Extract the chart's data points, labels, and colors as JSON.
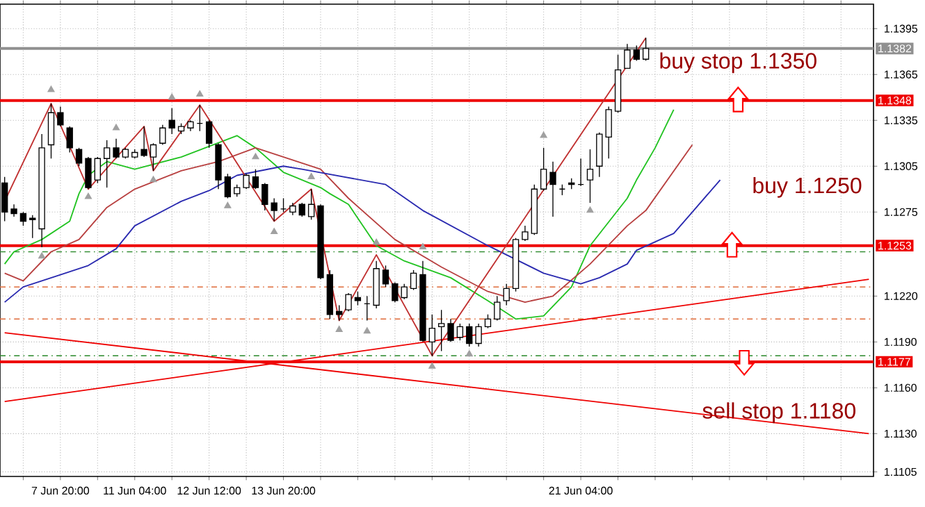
{
  "chart_data": {
    "type": "candlestick",
    "categories": [
      null,
      null,
      null,
      null,
      null,
      null,
      "7 Jun 20:00",
      null,
      null,
      null,
      null,
      null,
      null,
      null,
      "11 Jun 04:00",
      null,
      null,
      null,
      null,
      null,
      null,
      null,
      "12 Jun 12:00",
      null,
      null,
      null,
      null,
      null,
      null,
      null,
      "13 Jun 20:00",
      null,
      null,
      null,
      null,
      null,
      null,
      null,
      null,
      null,
      null,
      null,
      null,
      null,
      null,
      null,
      null,
      null,
      null,
      null,
      null,
      null,
      null,
      null,
      null,
      null,
      null,
      null,
      null,
      null,
      null,
      null,
      "21 Jun 04:00",
      null,
      null,
      null,
      null,
      null,
      null,
      null,
      null,
      null,
      null,
      null,
      null,
      null,
      null,
      null,
      null,
      null,
      null,
      null,
      null,
      null,
      null,
      null,
      null,
      null,
      null,
      null,
      null,
      null,
      null,
      null
    ],
    "ohlc": [
      [
        1.1294,
        1.1298,
        1.1269,
        1.1275
      ],
      [
        1.1277,
        1.128,
        1.1272,
        1.1274
      ],
      [
        1.1274,
        1.1275,
        1.1266,
        1.1269
      ],
      [
        1.1271,
        1.1273,
        1.1258,
        1.127
      ],
      [
        1.1264,
        1.1326,
        1.1252,
        1.1317
      ],
      [
        1.1319,
        1.1346,
        1.131,
        1.134
      ],
      [
        1.134,
        1.1344,
        1.1331,
        1.1332
      ],
      [
        1.133,
        1.1331,
        1.1314,
        1.1317
      ],
      [
        1.1316,
        1.1317,
        1.1305,
        1.1307
      ],
      [
        1.131,
        1.1311,
        1.129,
        1.1291
      ],
      [
        1.1296,
        1.1311,
        1.1294,
        1.131
      ],
      [
        1.131,
        1.1322,
        1.1291,
        1.1317
      ],
      [
        1.1317,
        1.1323,
        1.131,
        1.1311
      ],
      [
        1.1311,
        1.1317,
        1.131,
        1.1316
      ],
      [
        1.1311,
        1.1316,
        1.131,
        1.1314
      ],
      [
        1.1316,
        1.1331,
        1.1311,
        1.1312
      ],
      [
        1.1311,
        1.132,
        1.1302,
        1.1319
      ],
      [
        1.132,
        1.1332,
        1.1319,
        1.133
      ],
      [
        1.1335,
        1.1343,
        1.1326,
        1.133
      ],
      [
        1.1328,
        1.1333,
        1.1326,
        1.1331
      ],
      [
        1.133,
        1.1335,
        1.1328,
        1.1334
      ],
      [
        1.1333,
        1.1345,
        1.1328,
        1.1333
      ],
      [
        1.1334,
        1.1335,
        1.1317,
        1.132
      ],
      [
        1.1319,
        1.132,
        1.129,
        1.1296
      ],
      [
        1.1298,
        1.13,
        1.1284,
        1.1285
      ],
      [
        1.1287,
        1.1293,
        1.1285,
        1.1291
      ],
      [
        1.1291,
        1.13,
        1.129,
        1.1299
      ],
      [
        1.1298,
        1.1303,
        1.129,
        1.1291
      ],
      [
        1.1293,
        1.1294,
        1.1276,
        1.128
      ],
      [
        1.1281,
        1.1284,
        1.1269,
        1.1276
      ],
      [
        1.1277,
        1.1284,
        1.1275,
        1.1277
      ],
      [
        1.1275,
        1.1281,
        1.1273,
        1.1279
      ],
      [
        1.128,
        1.1281,
        1.1272,
        1.1273
      ],
      [
        1.1272,
        1.129,
        1.127,
        1.128
      ],
      [
        1.1279,
        1.128,
        1.1231,
        1.1232
      ],
      [
        1.1234,
        1.1237,
        1.1205,
        1.1208
      ],
      [
        1.121,
        1.1214,
        1.1204,
        1.1208
      ],
      [
        1.1211,
        1.1222,
        1.121,
        1.1221
      ],
      [
        1.1219,
        1.1223,
        1.1214,
        1.1217
      ],
      [
        1.1215,
        1.122,
        1.1204,
        1.1215
      ],
      [
        1.1214,
        1.1243,
        1.1212,
        1.1238
      ],
      [
        1.1237,
        1.124,
        1.1226,
        1.1228
      ],
      [
        1.1228,
        1.1229,
        1.1216,
        1.1217
      ],
      [
        1.1219,
        1.1228,
        1.1218,
        1.1226
      ],
      [
        1.1225,
        1.1237,
        1.1224,
        1.1235
      ],
      [
        1.1234,
        1.1243,
        1.119,
        1.1191
      ],
      [
        1.119,
        1.1208,
        1.1181,
        1.1199
      ],
      [
        1.12,
        1.1211,
        1.1184,
        1.1202
      ],
      [
        1.1202,
        1.1205,
        1.119,
        1.1191
      ],
      [
        1.1193,
        1.1202,
        1.1191,
        1.12
      ],
      [
        1.12,
        1.1202,
        1.1187,
        1.1189
      ],
      [
        1.1189,
        1.1202,
        1.1187,
        1.12
      ],
      [
        1.12,
        1.1208,
        1.1199,
        1.1205
      ],
      [
        1.1205,
        1.122,
        1.1204,
        1.1216
      ],
      [
        1.1217,
        1.1228,
        1.1214,
        1.1225
      ],
      [
        1.1225,
        1.1258,
        1.1223,
        1.1257
      ],
      [
        1.1257,
        1.1266,
        1.1256,
        1.1262
      ],
      [
        1.1261,
        1.1293,
        1.126,
        1.129
      ],
      [
        1.129,
        1.1317,
        1.1289,
        1.1303
      ],
      [
        1.1301,
        1.1308,
        1.1272,
        1.1293
      ],
      [
        1.129,
        1.1293,
        1.1286,
        1.129
      ],
      [
        1.1294,
        1.1297,
        1.129,
        1.1293
      ],
      [
        1.1293,
        1.131,
        1.1292,
        1.1293
      ],
      [
        1.1296,
        1.1316,
        1.1281,
        1.1303
      ],
      [
        1.1305,
        1.1327,
        1.1298,
        1.1326
      ],
      [
        1.1324,
        1.1344,
        1.131,
        1.1342
      ],
      [
        1.1341,
        1.1378,
        1.134,
        1.1368
      ],
      [
        1.1369,
        1.1385,
        1.1369,
        1.1381
      ],
      [
        1.1381,
        1.1384,
        1.1374,
        1.1375
      ],
      [
        1.1375,
        1.1389,
        1.1374,
        1.1382
      ],
      null,
      null,
      null,
      null,
      null,
      null,
      null,
      null,
      null,
      null,
      null,
      null,
      null,
      null,
      null,
      null,
      null,
      null,
      null,
      null,
      null,
      null,
      null,
      null
    ],
    "series": [
      {
        "type": "line",
        "color": "#22c322",
        "values": [
          1.1241,
          1.1249,
          null,
          null,
          1.1257,
          null,
          null,
          1.1269,
          1.1287,
          1.1299,
          null,
          1.1308,
          null,
          null,
          1.1303,
          null,
          null,
          null,
          null,
          1.1311,
          null,
          null,
          null,
          null,
          null,
          1.1325,
          null,
          1.1317,
          null,
          null,
          1.1301,
          null,
          null,
          null,
          1.1291,
          1.1287,
          null,
          1.128,
          null,
          null,
          1.1253,
          null,
          null,
          1.1243,
          null,
          null,
          null,
          null,
          1.1232,
          null,
          null,
          null,
          1.1217,
          null,
          null,
          1.1205,
          null,
          null,
          1.1207,
          null,
          null,
          1.1226,
          null,
          1.1253,
          null,
          null,
          null,
          1.1284,
          1.1296,
          null,
          1.1317,
          null,
          1.1342,
          null,
          null,
          null,
          null,
          null,
          null,
          null,
          null,
          null,
          null,
          null,
          null,
          null,
          null,
          null,
          null,
          null,
          null,
          null,
          null,
          null
        ]
      },
      {
        "type": "line",
        "color": "#b84040",
        "values": [
          1.1235,
          null,
          1.123,
          null,
          null,
          1.1249,
          null,
          null,
          1.1257,
          null,
          null,
          1.1278,
          null,
          null,
          1.129,
          null,
          null,
          null,
          null,
          1.1302,
          null,
          null,
          null,
          1.1308,
          null,
          null,
          null,
          1.1317,
          null,
          null,
          null,
          null,
          null,
          null,
          1.1303,
          null,
          null,
          1.1284,
          null,
          null,
          null,
          null,
          1.1257,
          null,
          null,
          null,
          null,
          1.1239,
          null,
          null,
          null,
          null,
          1.1223,
          null,
          null,
          null,
          1.1216,
          null,
          null,
          1.122,
          null,
          null,
          null,
          1.1241,
          null,
          null,
          null,
          1.1266,
          null,
          1.1276,
          null,
          null,
          null,
          null,
          1.1319,
          null,
          null,
          null,
          null,
          null,
          null,
          null,
          null,
          null,
          null,
          null,
          null,
          null,
          null,
          null,
          null,
          null,
          null,
          null
        ]
      },
      {
        "type": "line",
        "color": "#2a2ab0",
        "values": [
          1.1216,
          null,
          1.1226,
          null,
          null,
          null,
          1.1234,
          null,
          null,
          1.124,
          null,
          null,
          1.1251,
          null,
          1.1266,
          null,
          null,
          null,
          null,
          1.1282,
          null,
          null,
          1.1289,
          null,
          null,
          1.1299,
          null,
          null,
          null,
          null,
          1.1305,
          null,
          1.1303,
          null,
          null,
          null,
          null,
          null,
          null,
          null,
          null,
          1.1293,
          null,
          null,
          null,
          1.1276,
          null,
          null,
          null,
          null,
          null,
          null,
          1.1253,
          null,
          null,
          null,
          null,
          null,
          1.1235,
          null,
          null,
          null,
          1.1228,
          null,
          1.1232,
          null,
          null,
          1.1241,
          1.125,
          null,
          null,
          null,
          1.1261,
          null,
          1.1275,
          null,
          null,
          1.1296,
          null,
          null,
          null,
          null,
          null,
          null,
          null,
          null,
          null,
          null,
          null,
          null,
          null,
          null,
          null,
          null
        ]
      },
      {
        "type": "line",
        "color": "#c03030",
        "values": [
          1.1282,
          null,
          null,
          null,
          null,
          1.1346,
          null,
          null,
          null,
          1.129,
          null,
          null,
          null,
          null,
          null,
          1.1331,
          1.1302,
          null,
          null,
          null,
          null,
          1.1345,
          null,
          null,
          null,
          null,
          null,
          null,
          null,
          1.1269,
          null,
          null,
          null,
          1.129,
          null,
          null,
          1.1204,
          null,
          null,
          null,
          1.1247,
          null,
          null,
          null,
          null,
          null,
          1.1181,
          null,
          null,
          null,
          null,
          null,
          null,
          null,
          null,
          null,
          null,
          null,
          null,
          null,
          null,
          null,
          null,
          null,
          null,
          null,
          null,
          null,
          null,
          1.1389,
          null,
          null,
          null,
          null,
          null,
          null,
          null,
          null,
          null,
          null,
          null,
          null,
          null,
          null,
          null,
          null,
          null,
          null,
          null,
          null,
          null,
          null,
          null,
          null
        ]
      },
      {
        "type": "line",
        "color": "#ee0000",
        "values": [
          1.1196,
          null,
          null,
          null,
          null,
          null,
          null,
          null,
          null,
          null,
          null,
          null,
          null,
          null,
          null,
          null,
          null,
          null,
          null,
          null,
          null,
          null,
          null,
          null,
          null,
          null,
          null,
          null,
          null,
          null,
          null,
          null,
          null,
          null,
          null,
          null,
          null,
          null,
          null,
          null,
          null,
          null,
          null,
          null,
          null,
          null,
          null,
          null,
          null,
          null,
          null,
          null,
          null,
          null,
          null,
          null,
          null,
          null,
          null,
          null,
          null,
          null,
          null,
          null,
          null,
          null,
          null,
          null,
          null,
          null,
          null,
          null,
          null,
          null,
          null,
          null,
          null,
          null,
          null,
          null,
          null,
          null,
          null,
          null,
          null,
          null,
          null,
          null,
          null,
          null,
          null,
          null,
          null,
          1.113
        ]
      },
      {
        "type": "line",
        "color": "#ee0000",
        "values": [
          1.1151,
          null,
          null,
          null,
          null,
          null,
          null,
          null,
          null,
          null,
          null,
          null,
          null,
          null,
          null,
          null,
          null,
          null,
          null,
          null,
          null,
          null,
          null,
          null,
          null,
          null,
          null,
          null,
          null,
          null,
          null,
          null,
          null,
          null,
          null,
          null,
          null,
          null,
          null,
          null,
          null,
          null,
          null,
          null,
          null,
          null,
          null,
          null,
          null,
          null,
          null,
          null,
          null,
          null,
          null,
          null,
          null,
          null,
          null,
          null,
          null,
          null,
          null,
          null,
          null,
          null,
          null,
          null,
          null,
          null,
          null,
          null,
          null,
          null,
          null,
          null,
          null,
          null,
          null,
          null,
          null,
          null,
          null,
          null,
          null,
          null,
          null,
          null,
          null,
          null,
          null,
          null,
          null,
          1.1231
        ]
      },
      {
        "type": "scatter",
        "color": "#a0a0a0",
        "marker": "triangle",
        "values": [
          null,
          null,
          null,
          null,
          null,
          1.1355,
          null,
          null,
          null,
          null,
          null,
          null,
          1.133,
          null,
          null,
          null,
          null,
          null,
          1.135,
          null,
          null,
          1.1352,
          null,
          null,
          null,
          null,
          null,
          1.1311,
          null,
          null,
          null,
          null,
          null,
          1.1298,
          null,
          null,
          null,
          null,
          null,
          null,
          1.1255,
          null,
          null,
          null,
          null,
          1.1252,
          null,
          null,
          null,
          null,
          null,
          null,
          null,
          null,
          null,
          null,
          null,
          null,
          1.1325,
          null,
          null,
          null,
          null,
          null,
          null,
          null,
          null,
          null,
          null,
          null,
          null,
          null,
          null,
          null,
          null,
          null,
          null,
          null,
          null,
          null,
          null,
          null,
          null,
          null,
          null,
          null,
          null,
          null,
          null,
          null,
          null,
          null,
          null,
          null
        ]
      },
      {
        "type": "scatter",
        "color": "#a0a0a0",
        "marker": "triangle",
        "values": [
          null,
          null,
          null,
          null,
          1.1246,
          null,
          null,
          null,
          null,
          1.1285,
          null,
          null,
          null,
          null,
          null,
          null,
          1.1296,
          null,
          null,
          null,
          null,
          null,
          null,
          null,
          1.1279,
          null,
          null,
          null,
          null,
          1.1262,
          null,
          null,
          null,
          null,
          null,
          null,
          1.1198,
          null,
          null,
          1.1197,
          null,
          null,
          null,
          null,
          null,
          null,
          1.1174,
          null,
          null,
          null,
          1.1182,
          null,
          null,
          null,
          null,
          null,
          null,
          null,
          null,
          null,
          null,
          null,
          null,
          1.1276,
          null,
          null,
          null,
          null,
          null,
          null,
          null,
          null,
          null,
          null,
          null,
          null,
          null,
          null,
          null,
          null,
          null,
          null,
          null,
          null,
          null,
          null,
          null,
          null,
          null,
          null,
          null,
          null,
          null,
          null
        ]
      }
    ],
    "ylim": [
      1.1102,
      1.1411
    ],
    "yticks": [
      1.1105,
      {
        "value": 1.113,
        "label": "1.1130"
      },
      {
        "value": 1.116,
        "label": "1.1160"
      },
      {
        "value": 1.119,
        "label": "1.1190"
      },
      {
        "value": 1.122,
        "label": "1.1220"
      },
      1.1275,
      1.1305,
      1.1335,
      1.1365,
      1.1395
    ],
    "grid": true,
    "ref_lines": [
      {
        "axis": "y",
        "value": 1.1348,
        "label": "1.1348",
        "color": "#ee0000",
        "line_style": "solid"
      },
      {
        "axis": "y",
        "value": 1.1253,
        "label": "1.1253",
        "color": "#ee0000",
        "line_style": "solid"
      },
      {
        "axis": "y",
        "value": 1.1177,
        "label": "1.1177",
        "color": "#ee0000",
        "line_style": "solid"
      },
      {
        "axis": "y",
        "value": 1.1382,
        "label": "1.1382",
        "color": "#909090",
        "line_style": "solid"
      },
      {
        "axis": "y",
        "value": 1.1249,
        "color": "#2e8b2e",
        "line_style": "dashed"
      },
      {
        "axis": "y",
        "value": 1.1226,
        "color": "#e07040",
        "line_style": "dashed"
      },
      {
        "axis": "y",
        "value": 1.1205,
        "color": "#e07040",
        "line_style": "dashed"
      },
      {
        "axis": "y",
        "value": 1.1181,
        "color": "#2e8b2e",
        "line_style": "dashed"
      }
    ],
    "annotations": [
      "buy stop 1.1350",
      "buy 1.1250",
      "sell stop 1.1180"
    ]
  }
}
